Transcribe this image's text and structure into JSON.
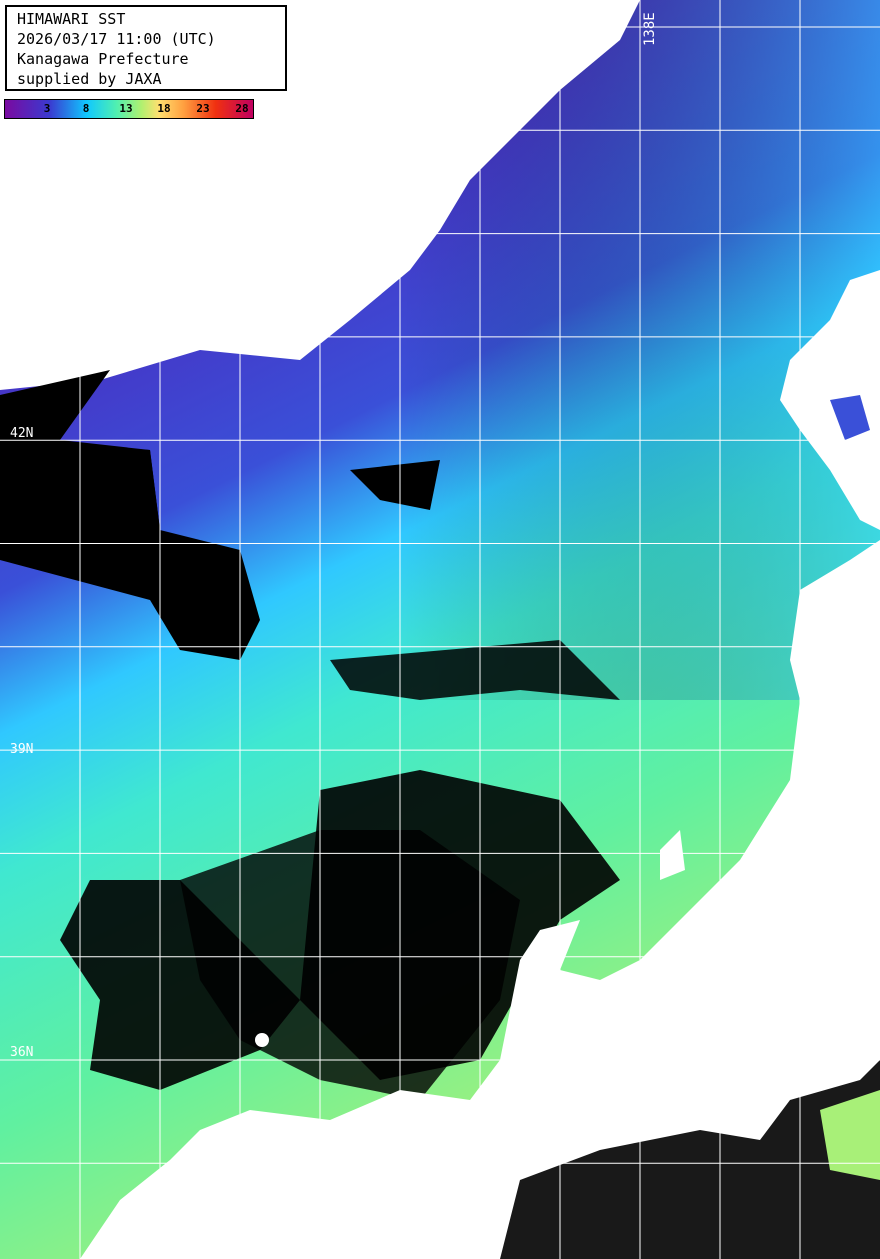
{
  "info": {
    "title": "HIMAWARI SST",
    "datetime": "2026/03/17 11:00 (UTC)",
    "region": "Kanagawa Prefecture",
    "credit": "supplied by JAXA"
  },
  "colorbar": {
    "ticks": [
      "3",
      "8",
      "13",
      "18",
      "23",
      "28"
    ],
    "colors": [
      "#7a0aa0",
      "#3a3ad0",
      "#10c8ff",
      "#50f0b0",
      "#b0f070",
      "#ffe070",
      "#ffa040",
      "#f03010",
      "#c00060"
    ]
  },
  "grid": {
    "lat_labels": [
      "42N",
      "39N",
      "36N"
    ],
    "lon_labels": [
      "138E"
    ]
  },
  "legend_colors": {
    "land": "#ffffff",
    "no_data": "#000000",
    "grid": "#ffffff"
  }
}
